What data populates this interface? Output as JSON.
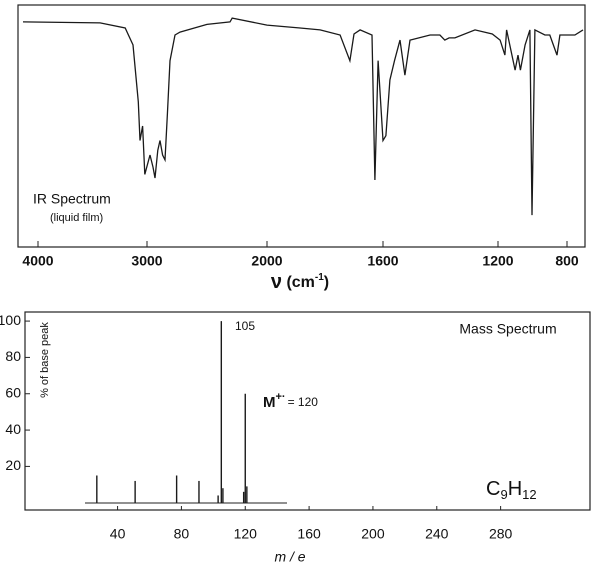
{
  "chart_data": [
    {
      "type": "line",
      "title": "IR Spectrum",
      "subtitle": "(liquid film)",
      "x_label": {
        "symbol": "ν",
        "unit_open": "(cm",
        "exponent": "-1",
        "unit_close": ")"
      },
      "xlim": [
        4200,
        700
      ],
      "xticks": [
        4000,
        3000,
        2000,
        1600,
        1200,
        800
      ],
      "ylim": [
        0,
        100
      ],
      "color": "#1a1a1a",
      "x": [
        4150,
        3430,
        3200,
        3128,
        3080,
        3064,
        3040,
        3020,
        2975,
        2950,
        2933,
        2910,
        2892,
        2870,
        2850,
        2830,
        2808,
        2767,
        2725,
        2500,
        2308,
        2290,
        2000,
        1886,
        1817,
        1748,
        1714,
        1700,
        1679,
        1638,
        1628,
        1617,
        1600,
        1590,
        1576,
        1560,
        1541,
        1524,
        1506,
        1436,
        1402,
        1385,
        1370,
        1350,
        1280,
        1220,
        1188,
        1160,
        1150,
        1101,
        1084,
        1070,
        1043,
        1015,
        1003,
        986,
        928,
        900,
        858,
        841,
        756,
        711
      ],
      "values": [
        93,
        92.6,
        90.5,
        83.5,
        60,
        44,
        50,
        30,
        38,
        33,
        28.5,
        40,
        44,
        38,
        36,
        55,
        77,
        87.6,
        88.8,
        92,
        93,
        94.6,
        91.7,
        90.5,
        89.7,
        87.6,
        77,
        88,
        89.7,
        87.6,
        27.7,
        77,
        44,
        46,
        69,
        77,
        85.5,
        71,
        85.5,
        87.6,
        87.6,
        85.5,
        86.4,
        86.4,
        89.7,
        88,
        85.5,
        79.3,
        89.7,
        73.1,
        79.3,
        73.1,
        83.5,
        89.7,
        13.2,
        89.7,
        87.6,
        87.6,
        79.3,
        87.6,
        87.6,
        89.7
      ]
    },
    {
      "type": "bar",
      "title": "Mass Spectrum",
      "x_label": "m / e",
      "y_label": "% of base peak",
      "xlim": [
        -18,
        336
      ],
      "xticks": [
        40,
        80,
        120,
        160,
        200,
        240,
        280
      ],
      "ylim": [
        -4,
        105
      ],
      "yticks": [
        20,
        40,
        60,
        80,
        100
      ],
      "color": "#1a1a1a",
      "x": [
        27,
        51,
        77,
        91,
        103,
        105,
        106,
        119,
        120,
        121
      ],
      "values": [
        15,
        12,
        15,
        12,
        4,
        100,
        8,
        6,
        60,
        9
      ],
      "annotations": [
        {
          "text": "105"
        },
        {
          "text": "M",
          "superscript": "+·",
          "rest": "= 120"
        }
      ],
      "formula": [
        "C",
        "9",
        "H",
        "12"
      ]
    }
  ]
}
